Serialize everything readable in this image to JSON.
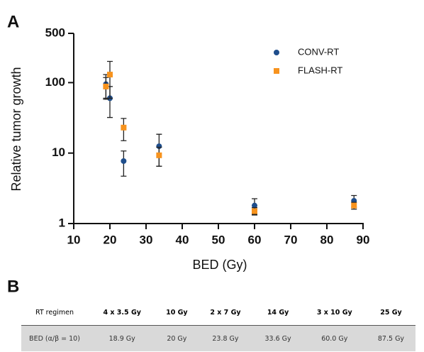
{
  "panel_labels": [
    "A",
    "B"
  ],
  "chart_data": {
    "type": "scatter",
    "ylabel": "Relative tumor growth",
    "xlabel": "BED (Gy)",
    "x": [
      18.9,
      20,
      23.8,
      33.6,
      60,
      87.5
    ],
    "series": [
      {
        "name": "CONV-RT",
        "color": "#1f4e8c",
        "marker": "circle",
        "values": [
          95,
          60,
          7.7,
          12.5,
          1.8,
          2.1
        ],
        "errors": [
          35,
          28,
          3,
          6,
          0.45,
          0.4
        ]
      },
      {
        "name": "FLASH-RT",
        "color": "#f7931e",
        "marker": "square",
        "values": [
          88,
          130,
          23,
          9.3,
          1.5,
          1.8
        ],
        "errors": [
          30,
          70,
          8,
          2.8,
          0.18,
          0.2
        ]
      }
    ],
    "xlim": [
      10,
      90
    ],
    "xticks": [
      10,
      20,
      30,
      40,
      50,
      60,
      70,
      80,
      90
    ],
    "ylim": [
      1,
      500
    ],
    "yticks": [
      1,
      10,
      100,
      500
    ],
    "ylog": true,
    "legend": "upper right"
  },
  "table": {
    "header": [
      "RT regimen",
      "4 x 3.5 Gy",
      "10 Gy",
      "2 x 7 Gy",
      "14 Gy",
      "3 x 10 Gy",
      "25 Gy"
    ],
    "rows": [
      [
        "BED (α/β = 10)",
        "18.9 Gy",
        "20 Gy",
        "23.8 Gy",
        "33.6 Gy",
        "60.0 Gy",
        "87.5 Gy"
      ]
    ]
  }
}
